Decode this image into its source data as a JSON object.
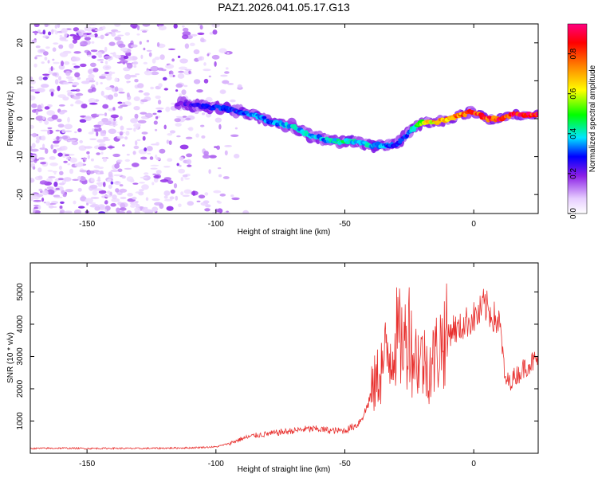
{
  "figure_title": "PAZ1.2026.041.05.17.G13",
  "chart_data": [
    {
      "type": "heatmap",
      "panel": "spectrogram",
      "title": "PAZ1.2026.041.05.17.G13",
      "xlabel": "Height of straight line (km)",
      "ylabel": "Frequency (Hz)",
      "xlim": [
        -172,
        25
      ],
      "ylim": [
        -25,
        25
      ],
      "xticks": [
        -150,
        -100,
        -50,
        0
      ],
      "yticks": [
        -20,
        -10,
        0,
        10,
        20
      ],
      "colorbar": {
        "label": "Normalized spectral amplitude",
        "range": [
          0,
          0.95
        ],
        "ticks": [
          0.0,
          0.2,
          0.4,
          0.6,
          0.8
        ],
        "tick_labels": [
          "0.0",
          "0.2",
          "0.4",
          "0.6",
          "0.8"
        ],
        "colormap": [
          "#ffffff",
          "#e6ccff",
          "#8a1ee6",
          "#0000ff",
          "#00e6ff",
          "#00ff00",
          "#ffff00",
          "#ff8000",
          "#ff0000",
          "#ff0080"
        ]
      },
      "ridge_trace": {
        "height_km": [
          -115,
          -108,
          -100,
          -92,
          -85,
          -78,
          -70,
          -65,
          -60,
          -55,
          -50,
          -45,
          -40,
          -35,
          -30,
          -27,
          -24,
          -20,
          -15,
          -10,
          -5,
          0,
          5,
          10,
          15,
          20,
          25
        ],
        "frequency_hz": [
          4,
          3.5,
          3,
          2,
          1,
          -1,
          -2,
          -4,
          -5,
          -6,
          -6,
          -6,
          -7,
          -7,
          -7,
          -5,
          -3,
          -1,
          -1,
          0,
          1,
          2,
          0,
          0,
          1,
          1,
          1
        ],
        "amplitude": [
          0.2,
          0.25,
          0.3,
          0.3,
          0.35,
          0.35,
          0.4,
          0.4,
          0.35,
          0.4,
          0.45,
          0.4,
          0.4,
          0.35,
          0.3,
          0.3,
          0.4,
          0.6,
          0.7,
          0.75,
          0.8,
          0.85,
          0.85,
          0.9,
          0.9,
          0.9,
          0.9
        ]
      },
      "noise_region_km": [
        -172,
        -90
      ]
    },
    {
      "type": "line",
      "panel": "snr",
      "xlabel": "Height of straight line (km)",
      "ylabel": "SNR (10 * v/v)",
      "xlim": [
        -172,
        25
      ],
      "ylim": [
        0,
        5900
      ],
      "xticks": [
        -150,
        -100,
        -50,
        0
      ],
      "yticks": [
        1000,
        2000,
        3000,
        4000,
        5000
      ],
      "color": "#e8302e",
      "series": [
        {
          "name": "SNR",
          "x": [
            -172,
            -160,
            -150,
            -140,
            -130,
            -120,
            -110,
            -100,
            -95,
            -90,
            -85,
            -80,
            -75,
            -70,
            -65,
            -60,
            -55,
            -50,
            -45,
            -42,
            -40,
            -38,
            -36,
            -34,
            -32,
            -30,
            -28,
            -26,
            -25,
            -24,
            -22,
            -20,
            -18,
            -16,
            -14,
            -12,
            -10,
            -8,
            -6,
            -4,
            -2,
            0,
            2,
            4,
            6,
            8,
            10,
            11,
            12,
            14,
            16,
            18,
            20,
            22,
            25
          ],
          "values": [
            150,
            160,
            150,
            155,
            150,
            160,
            170,
            200,
            300,
            450,
            550,
            600,
            650,
            700,
            750,
            750,
            700,
            700,
            900,
            1300,
            1800,
            2200,
            2600,
            3000,
            3200,
            3600,
            3500,
            3400,
            4200,
            3100,
            3000,
            2900,
            2700,
            2800,
            3200,
            3500,
            3700,
            3900,
            3800,
            4000,
            4100,
            4200,
            4300,
            4600,
            4400,
            4200,
            4000,
            3400,
            2300,
            2200,
            2400,
            2500,
            2700,
            2800,
            2900
          ]
        }
      ]
    }
  ]
}
